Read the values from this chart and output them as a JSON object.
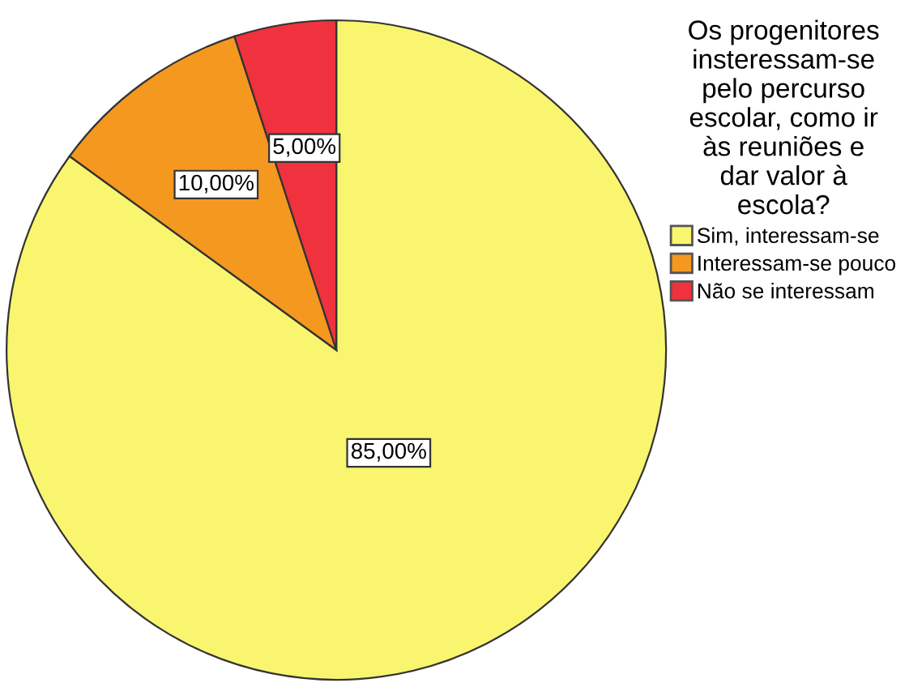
{
  "chart_data": {
    "type": "pie",
    "legend_title": "Os progenitores insteressam-se pelo percurso escolar, como ir às reuniões e dar valor à escola?",
    "categories": [
      "Sim, interessam-se",
      "Interessam-se pouco",
      "Não se interessam"
    ],
    "values": [
      85,
      10,
      5
    ],
    "colors": [
      "#f9f56f",
      "#f5981f",
      "#ef323d"
    ],
    "value_labels": [
      "85,00%",
      "10,00%",
      "5,00%"
    ],
    "legend": "right"
  }
}
